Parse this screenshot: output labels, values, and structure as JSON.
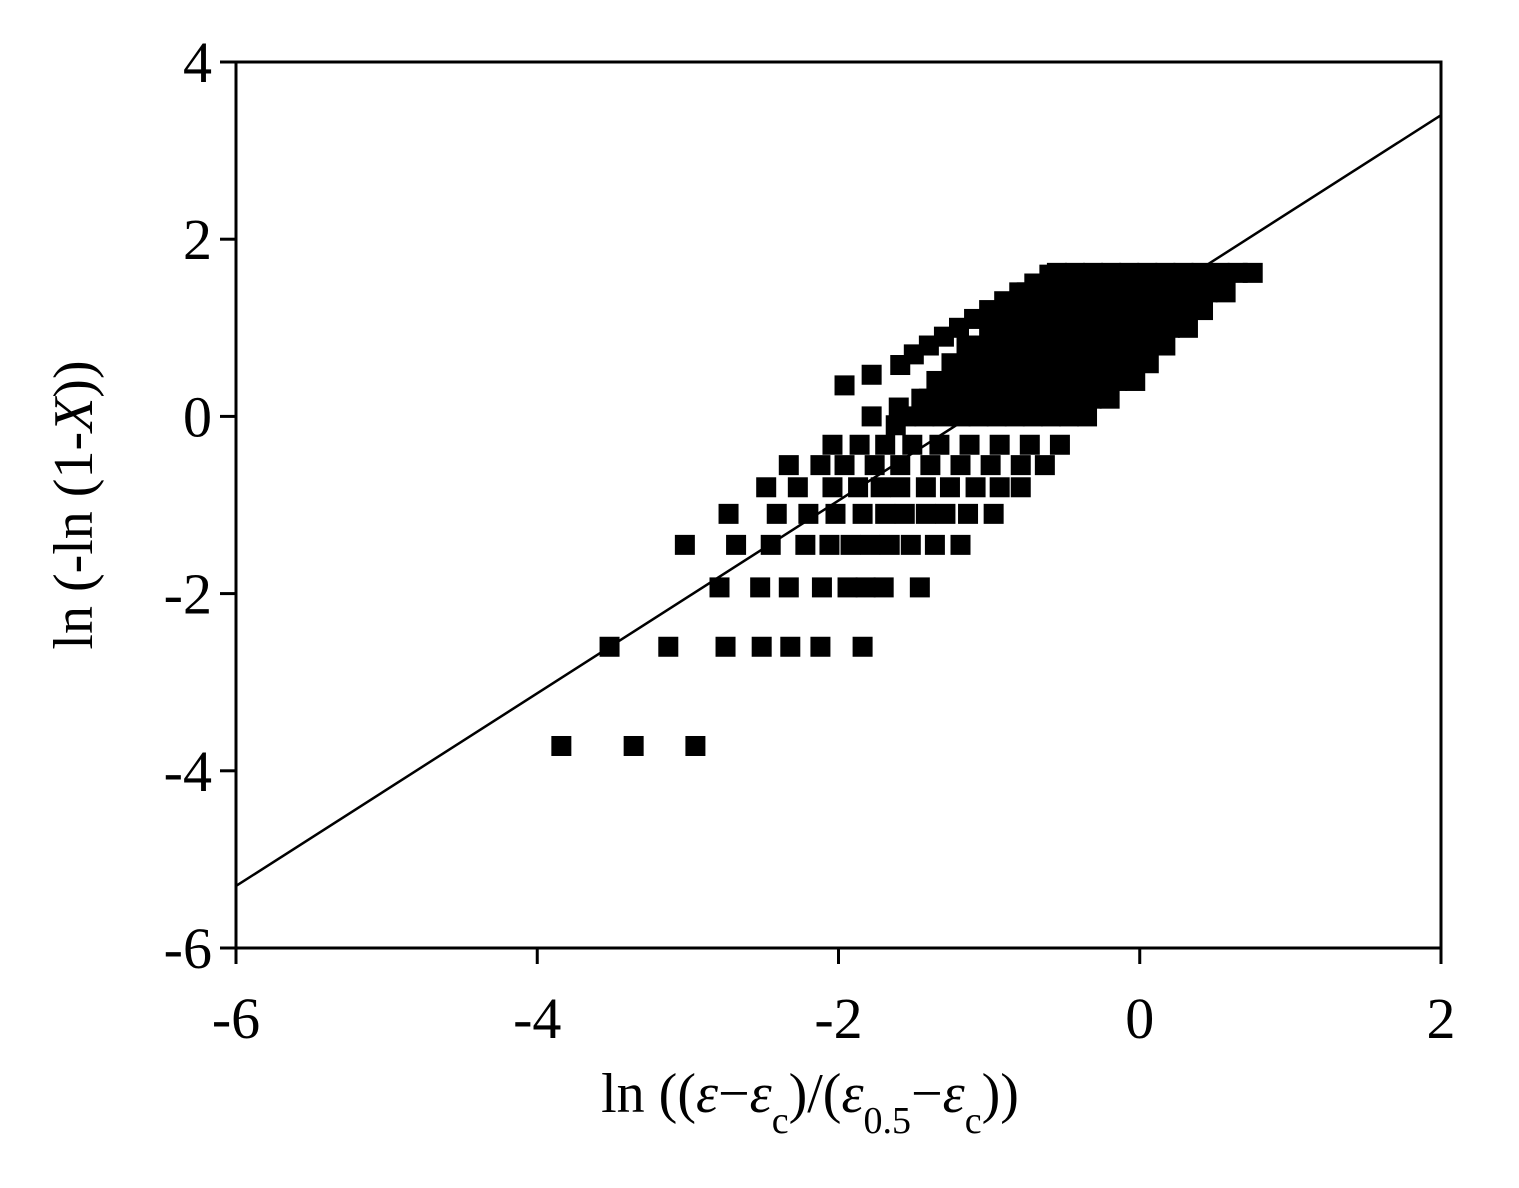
{
  "chart_data": {
    "type": "scatter",
    "xlim": [
      -6,
      2
    ],
    "xticks": [
      -6,
      -4,
      -2,
      0,
      2
    ],
    "ylim": [
      -6,
      4
    ],
    "yticks": [
      -6,
      -4,
      -2,
      0,
      2,
      4
    ],
    "xlabel": [
      {
        "text": "ln ((",
        "style": "normal"
      },
      {
        "text": "ε",
        "style": "italic"
      },
      {
        "text": "−",
        "style": "normal"
      },
      {
        "text": "ε",
        "style": "italic"
      },
      {
        "text": "c",
        "style": "sub"
      },
      {
        "text": ")/(",
        "style": "normal"
      },
      {
        "text": "ε",
        "style": "italic"
      },
      {
        "text": "0.5",
        "style": "sub"
      },
      {
        "text": "−",
        "style": "normal"
      },
      {
        "text": "ε",
        "style": "italic"
      },
      {
        "text": "c",
        "style": "sub"
      },
      {
        "text": "))",
        "style": "normal"
      }
    ],
    "ylabel": [
      {
        "text": "ln (-ln (1-",
        "style": "normal"
      },
      {
        "text": "X",
        "style": "italic"
      },
      {
        "text": "))",
        "style": "normal"
      }
    ],
    "series": [
      {
        "type": "scatter",
        "color": "#000000",
        "x": [
          -3.84,
          -3.36,
          -2.95,
          -3.52,
          -3.13,
          -2.75,
          -2.51,
          -2.32,
          -2.12,
          -1.84,
          -2.79,
          -2.52,
          -2.33,
          -2.11,
          -1.94,
          -1.82,
          -1.7,
          -1.46,
          -3.02,
          -2.68,
          -2.45,
          -2.22,
          -2.06,
          -1.92,
          -1.79,
          -1.66,
          -1.52,
          -1.36,
          -1.19,
          -2.73,
          -2.41,
          -2.2,
          -2.02,
          -1.84,
          -1.69,
          -1.56,
          -1.42,
          -1.29,
          -1.14,
          -0.97,
          -2.48,
          -2.27,
          -2.04,
          -1.87,
          -1.72,
          -1.59,
          -1.42,
          -1.26,
          -1.09,
          -0.93,
          -0.79,
          -2.33,
          -2.12,
          -1.96,
          -1.76,
          -1.59,
          -1.39,
          -1.19,
          -0.99,
          -0.79,
          -0.63,
          -2.04,
          -1.86,
          -1.69,
          -1.51,
          -1.33,
          -1.13,
          -0.93,
          -0.73,
          -0.53,
          -1.55,
          -1.43,
          -1.31,
          -1.19,
          -1.07,
          -0.95,
          -0.83,
          -0.71,
          -0.59,
          -0.47,
          -0.35,
          -1.4,
          -1.28,
          -1.16,
          -1.04,
          -0.92,
          -0.8,
          -0.68,
          -0.56,
          -0.44,
          -0.32,
          -0.2,
          -1.35,
          -1.23,
          -1.11,
          -0.99,
          -0.87,
          -0.75,
          -0.63,
          -0.51,
          -0.39,
          -0.27,
          -0.15,
          -0.03,
          -1.25,
          -1.13,
          -1.01,
          -0.89,
          -0.77,
          -0.65,
          -0.53,
          -0.41,
          -0.29,
          -0.17,
          -0.05,
          0.06,
          -1.15,
          -1.03,
          -0.91,
          -0.79,
          -0.67,
          -0.55,
          -0.43,
          -0.31,
          -0.19,
          -0.07,
          0.05,
          0.17,
          -1.0,
          -0.88,
          -0.76,
          -0.64,
          -0.52,
          -0.4,
          -0.28,
          -0.16,
          -0.04,
          0.08,
          0.2,
          0.32,
          -0.9,
          -0.78,
          -0.66,
          -0.54,
          -0.42,
          -0.3,
          -0.18,
          -0.06,
          0.06,
          0.18,
          0.3,
          0.42,
          -0.75,
          -0.63,
          -0.51,
          -0.39,
          -0.27,
          -0.15,
          -0.03,
          0.09,
          0.21,
          0.33,
          0.45,
          0.57,
          -0.55,
          -0.43,
          -0.31,
          -0.19,
          -0.07,
          0.05,
          0.17,
          0.29,
          0.41,
          0.53,
          0.65,
          0.75,
          -1.5,
          -1.4,
          -1.3,
          -1.2,
          -1.1,
          -1.0,
          -0.9,
          -0.8,
          -0.7,
          -0.6,
          -1.96,
          -1.78,
          -1.59,
          -1.78,
          -1.6,
          -1.62,
          -1.45
        ],
        "values": [
          -3.72,
          -3.72,
          -3.72,
          -2.6,
          -2.6,
          -2.6,
          -2.6,
          -2.6,
          -2.6,
          -2.6,
          -1.93,
          -1.93,
          -1.93,
          -1.93,
          -1.93,
          -1.93,
          -1.93,
          -1.93,
          -1.45,
          -1.45,
          -1.45,
          -1.45,
          -1.45,
          -1.45,
          -1.45,
          -1.45,
          -1.45,
          -1.45,
          -1.45,
          -1.1,
          -1.1,
          -1.1,
          -1.1,
          -1.1,
          -1.1,
          -1.1,
          -1.1,
          -1.1,
          -1.1,
          -1.1,
          -0.8,
          -0.8,
          -0.8,
          -0.8,
          -0.8,
          -0.8,
          -0.8,
          -0.8,
          -0.8,
          -0.8,
          -0.8,
          -0.55,
          -0.55,
          -0.55,
          -0.55,
          -0.55,
          -0.55,
          -0.55,
          -0.55,
          -0.55,
          -0.55,
          -0.32,
          -0.32,
          -0.32,
          -0.32,
          -0.32,
          -0.32,
          -0.32,
          -0.32,
          -0.32,
          0,
          0,
          0,
          0,
          0,
          0,
          0,
          0,
          0,
          0,
          0,
          0.2,
          0.2,
          0.2,
          0.2,
          0.2,
          0.2,
          0.2,
          0.2,
          0.2,
          0.2,
          0.2,
          0.4,
          0.4,
          0.4,
          0.4,
          0.4,
          0.4,
          0.4,
          0.4,
          0.4,
          0.4,
          0.4,
          0.4,
          0.6,
          0.6,
          0.6,
          0.6,
          0.6,
          0.6,
          0.6,
          0.6,
          0.6,
          0.6,
          0.6,
          0.6,
          0.8,
          0.8,
          0.8,
          0.8,
          0.8,
          0.8,
          0.8,
          0.8,
          0.8,
          0.8,
          0.8,
          0.8,
          1.0,
          1.0,
          1.0,
          1.0,
          1.0,
          1.0,
          1.0,
          1.0,
          1.0,
          1.0,
          1.0,
          1.0,
          1.2,
          1.2,
          1.2,
          1.2,
          1.2,
          1.2,
          1.2,
          1.2,
          1.2,
          1.2,
          1.2,
          1.2,
          1.4,
          1.4,
          1.4,
          1.4,
          1.4,
          1.4,
          1.4,
          1.4,
          1.4,
          1.4,
          1.4,
          1.4,
          1.62,
          1.62,
          1.62,
          1.62,
          1.62,
          1.62,
          1.62,
          1.62,
          1.62,
          1.62,
          1.62,
          1.62,
          0.7,
          0.8,
          0.9,
          1.0,
          1.1,
          1.2,
          1.3,
          1.4,
          1.5,
          1.6,
          0.35,
          0.47,
          0.58,
          0.0,
          0.1,
          -0.1,
          0.2
        ]
      },
      {
        "type": "line",
        "color": "#000000",
        "x": [
          -6,
          2
        ],
        "values": [
          -5.3,
          3.4
        ]
      }
    ]
  }
}
